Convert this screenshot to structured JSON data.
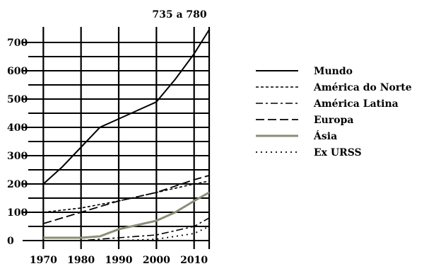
{
  "chart_data": {
    "type": "line",
    "annotation": "735 a 780",
    "x_ticks": [
      1970,
      1980,
      1990,
      2000,
      2010
    ],
    "y_ticks": [
      0,
      100,
      200,
      300,
      400,
      500,
      600,
      700
    ],
    "xlim": [
      1966,
      2014
    ],
    "ylim": [
      -15,
      755
    ],
    "grid": true,
    "legend_position": "right",
    "series": [
      {
        "name": "Mundo",
        "color": "#000000",
        "dash": "solid",
        "x": [
          1970,
          1975,
          1980,
          1985,
          1990,
          1995,
          2000,
          2005,
          2010,
          2014
        ],
        "y": [
          200,
          260,
          330,
          400,
          430,
          460,
          490,
          570,
          660,
          745
        ]
      },
      {
        "name": "América do Norte",
        "color": "#000000",
        "dash": "dashed-short",
        "x": [
          1970,
          1980,
          1990,
          2000,
          2010,
          2014
        ],
        "y": [
          100,
          115,
          140,
          170,
          200,
          210
        ]
      },
      {
        "name": "América Latina",
        "color": "#000000",
        "dash": "dash-dot",
        "x": [
          1970,
          1980,
          1990,
          2000,
          2010,
          2014
        ],
        "y": [
          0,
          0,
          10,
          20,
          50,
          80
        ]
      },
      {
        "name": "Europa",
        "color": "#000000",
        "dash": "dashed-long",
        "x": [
          1970,
          1980,
          1990,
          2000,
          2010,
          2014
        ],
        "y": [
          60,
          100,
          140,
          170,
          215,
          230
        ]
      },
      {
        "name": "Ásia",
        "color": "#8c8c76",
        "dash": "solid-thick",
        "x": [
          1970,
          1980,
          1985,
          1990,
          2000,
          2005,
          2010,
          2014
        ],
        "y": [
          10,
          10,
          15,
          40,
          70,
          100,
          140,
          170
        ]
      },
      {
        "name": "Ex URSS",
        "color": "#000000",
        "dash": "dotted",
        "x": [
          1970,
          1980,
          1990,
          2000,
          2010,
          2014
        ],
        "y": [
          0,
          0,
          0,
          5,
          25,
          50
        ]
      }
    ]
  }
}
